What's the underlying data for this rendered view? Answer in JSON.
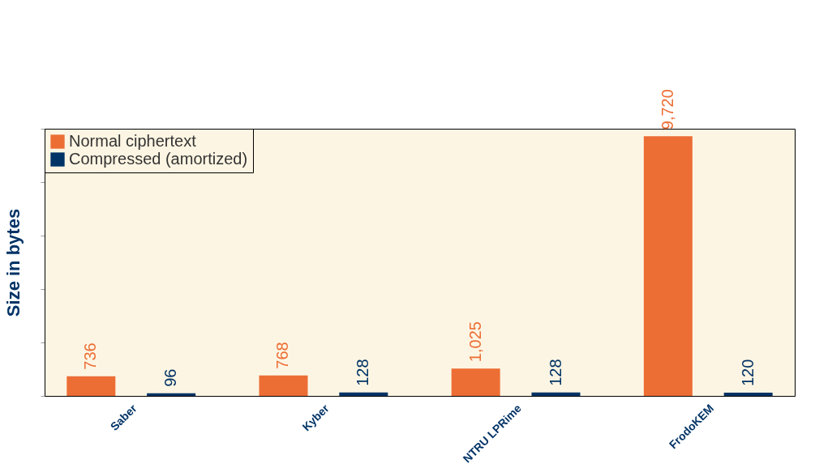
{
  "chart_data": {
    "type": "bar",
    "ylabel": "Size in bytes",
    "categories": [
      "Saber",
      "Kyber",
      "NTRU LPRime",
      "FrodoKEM"
    ],
    "series": [
      {
        "name": "Normal ciphertext",
        "color": "#ec6e35",
        "values": [
          736,
          768,
          1025,
          9720
        ],
        "value_labels": [
          "736",
          "768",
          "1,025",
          "9,720"
        ]
      },
      {
        "name": "Compressed (amortized)",
        "color": "#003366",
        "values": [
          96,
          128,
          128,
          120
        ],
        "value_labels": [
          "96",
          "128",
          "128",
          "120"
        ]
      }
    ],
    "ylim": [
      0,
      10000
    ],
    "yticks": [
      {
        "value": 0,
        "label": null
      },
      {
        "value": 2000,
        "label": null
      },
      {
        "value": 4000,
        "label": null
      },
      {
        "value": 6000,
        "label": null
      },
      {
        "value": 8000,
        "label": null
      },
      {
        "value": 10000,
        "label": null
      }
    ],
    "legend": "top left",
    "grid": false
  }
}
